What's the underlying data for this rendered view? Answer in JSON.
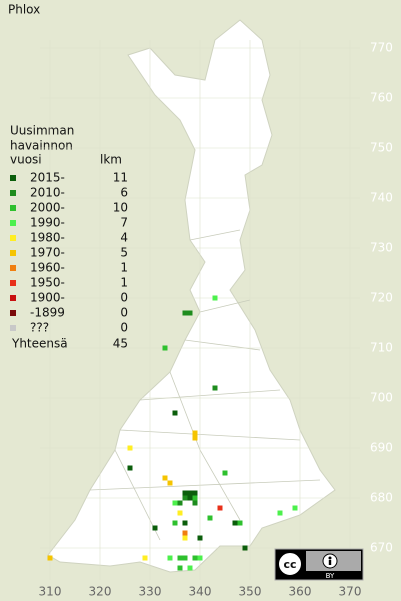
{
  "title": "Phlox",
  "legend": {
    "heading": [
      "Uusimman",
      "havainnon",
      "vuosi"
    ],
    "count_heading": "lkm",
    "rows": [
      {
        "label": "2015-",
        "count": 11,
        "color": "#0b5e0b"
      },
      {
        "label": "2010-",
        "count": 6,
        "color": "#1e8c1e"
      },
      {
        "label": "2000-",
        "count": 10,
        "color": "#2ec02e"
      },
      {
        "label": "1990-",
        "count": 7,
        "color": "#4cf04c"
      },
      {
        "label": "1980-",
        "count": 4,
        "color": "#ffee22"
      },
      {
        "label": "1970-",
        "count": 5,
        "color": "#f5c400"
      },
      {
        "label": "1960-",
        "count": 1,
        "color": "#f07f10"
      },
      {
        "label": "1950-",
        "count": 1,
        "color": "#e8301a"
      },
      {
        "label": "1900-",
        "count": 0,
        "color": "#c81010"
      },
      {
        "label": "-1899",
        "count": 0,
        "color": "#7a0a0a"
      },
      {
        "label": "???",
        "count": 0,
        "color": "#c8c8c8"
      }
    ],
    "total_label": "Yhteensä",
    "total": 45
  },
  "axes": {
    "x_ticks": [
      310,
      320,
      330,
      340,
      350,
      360,
      370
    ],
    "y_ticks": [
      670,
      680,
      690,
      700,
      710,
      720,
      730,
      740,
      750,
      760,
      770
    ]
  },
  "observations": [
    {
      "x": 337,
      "y": 681,
      "row": 0
    },
    {
      "x": 338,
      "y": 681,
      "row": 0
    },
    {
      "x": 339,
      "y": 681,
      "row": 0
    },
    {
      "x": 338,
      "y": 680,
      "row": 0
    },
    {
      "x": 335,
      "y": 697,
      "row": 0
    },
    {
      "x": 326,
      "y": 686,
      "row": 0
    },
    {
      "x": 331,
      "y": 674,
      "row": 0
    },
    {
      "x": 349,
      "y": 670,
      "row": 0
    },
    {
      "x": 340,
      "y": 672,
      "row": 0
    },
    {
      "x": 347,
      "y": 675,
      "row": 0
    },
    {
      "x": 337,
      "y": 675,
      "row": 0
    },
    {
      "x": 337,
      "y": 717,
      "row": 1
    },
    {
      "x": 338,
      "y": 717,
      "row": 1
    },
    {
      "x": 343,
      "y": 702,
      "row": 1
    },
    {
      "x": 337,
      "y": 680,
      "row": 1
    },
    {
      "x": 336,
      "y": 679,
      "row": 1
    },
    {
      "x": 339,
      "y": 679,
      "row": 1
    },
    {
      "x": 333,
      "y": 710,
      "row": 2
    },
    {
      "x": 345,
      "y": 685,
      "row": 2
    },
    {
      "x": 339,
      "y": 680,
      "row": 2
    },
    {
      "x": 335,
      "y": 675,
      "row": 2
    },
    {
      "x": 342,
      "y": 676,
      "row": 2
    },
    {
      "x": 348,
      "y": 675,
      "row": 2
    },
    {
      "x": 336,
      "y": 668,
      "row": 2
    },
    {
      "x": 337,
      "y": 668,
      "row": 2
    },
    {
      "x": 339,
      "y": 668,
      "row": 2
    },
    {
      "x": 336,
      "y": 666,
      "row": 2
    },
    {
      "x": 343,
      "y": 720,
      "row": 3
    },
    {
      "x": 356,
      "y": 677,
      "row": 3
    },
    {
      "x": 359,
      "y": 678,
      "row": 3
    },
    {
      "x": 340,
      "y": 668,
      "row": 3
    },
    {
      "x": 338,
      "y": 666,
      "row": 3
    },
    {
      "x": 335,
      "y": 679,
      "row": 3
    },
    {
      "x": 334,
      "y": 668,
      "row": 3
    },
    {
      "x": 326,
      "y": 690,
      "row": 4
    },
    {
      "x": 336,
      "y": 677,
      "row": 4
    },
    {
      "x": 337,
      "y": 672,
      "row": 4
    },
    {
      "x": 329,
      "y": 668,
      "row": 4
    },
    {
      "x": 339,
      "y": 693,
      "row": 5
    },
    {
      "x": 339,
      "y": 692,
      "row": 5
    },
    {
      "x": 333,
      "y": 684,
      "row": 5
    },
    {
      "x": 334,
      "y": 683,
      "row": 5
    },
    {
      "x": 310,
      "y": 668,
      "row": 5
    },
    {
      "x": 337,
      "y": 673,
      "row": 6
    },
    {
      "x": 344,
      "y": 678,
      "row": 7
    }
  ],
  "badge": {
    "cc": "cc",
    "by": "BY"
  }
}
